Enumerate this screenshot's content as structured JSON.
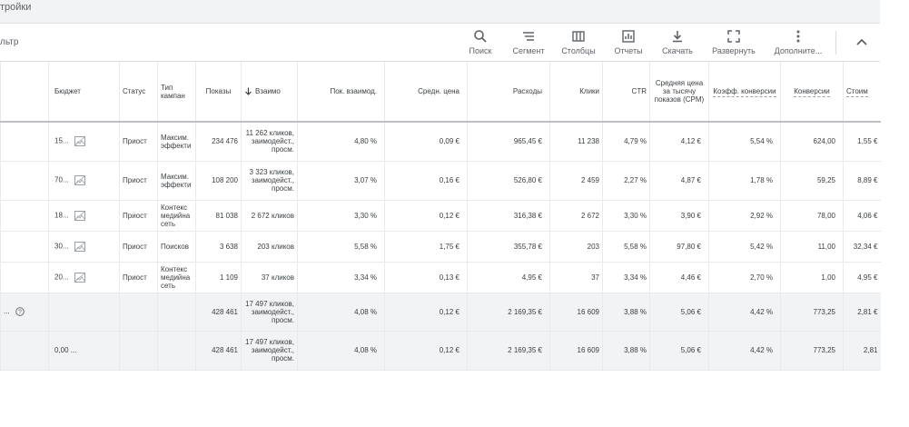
{
  "topbar": {
    "title": "тройки"
  },
  "toolbar": {
    "filter_label": "льтр",
    "tools": {
      "search": "Поиск",
      "segment": "Сегмент",
      "columns": "Столбцы",
      "reports": "Отчеты",
      "download": "Скачать",
      "expand": "Развернуть",
      "more": "Дополните..."
    }
  },
  "table": {
    "headers": {
      "budget": "Бюджет",
      "status": "Статус",
      "type": "Тип кампан",
      "impressions": "Показы",
      "interactions": "Взаимо",
      "interaction_rate": "Пок. взаимод.",
      "avg_cost": "Средн. цена",
      "cost": "Расходы",
      "clicks": "Клики",
      "ctr": "CTR",
      "cpm": "Средняя цена за тысячу показов (CPM)",
      "conv_rate": "Коэфф. конверсии",
      "conversions": "Конверсии",
      "cost_per": "Стоим"
    },
    "rows": [
      {
        "budget": "15...",
        "status": "Приост",
        "type": "Максим. эффекти",
        "impressions": "234 476",
        "interactions": "11 262 кликов, заимодейст., просм.",
        "interaction_rate": "4,80 %",
        "avg_cost": "0,09 €",
        "cost": "965,45 €",
        "clicks": "11 238",
        "ctr": "4,79 %",
        "cpm": "4,12 €",
        "conv_rate": "5,54 %",
        "conversions": "624,00",
        "cost_per": "1,55 €"
      },
      {
        "budget": "70...",
        "status": "Приост",
        "type": "Максим. эффекти",
        "impressions": "108 200",
        "interactions": "3 323 кликов, заимодейст., просм.",
        "interaction_rate": "3,07 %",
        "avg_cost": "0,16 €",
        "cost": "526,80 €",
        "clicks": "2 459",
        "ctr": "2,27 %",
        "cpm": "4,87 €",
        "conv_rate": "1,78 %",
        "conversions": "59,25",
        "cost_per": "8,89 €"
      },
      {
        "budget": "18...",
        "status": "Приост",
        "type": "Контекс медийна сеть",
        "impressions": "81 038",
        "interactions": "2 672 кликов",
        "interaction_rate": "3,30 %",
        "avg_cost": "0,12 €",
        "cost": "316,38 €",
        "clicks": "2 672",
        "ctr": "3,30 %",
        "cpm": "3,90 €",
        "conv_rate": "2,92 %",
        "conversions": "78,00",
        "cost_per": "4,06 €"
      },
      {
        "budget": "30...",
        "status": "Приост",
        "type": "Поисков",
        "impressions": "3 638",
        "interactions": "203 кликов",
        "interaction_rate": "5,58 %",
        "avg_cost": "1,75 €",
        "cost": "355,78 €",
        "clicks": "203",
        "ctr": "5,58 %",
        "cpm": "97,80 €",
        "conv_rate": "5,42 %",
        "conversions": "11,00",
        "cost_per": "32,34 €"
      },
      {
        "budget": "20...",
        "status": "Приост",
        "type": "Контекс медийна сеть",
        "impressions": "1 109",
        "interactions": "37 кликов",
        "interaction_rate": "3,34 %",
        "avg_cost": "0,13 €",
        "cost": "4,95 €",
        "clicks": "37",
        "ctr": "3,34 %",
        "cpm": "4,46 €",
        "conv_rate": "2,70 %",
        "conversions": "1,00",
        "cost_per": "4,95 €"
      }
    ],
    "totals": [
      {
        "label": "...",
        "budget": "",
        "impressions": "428 461",
        "interactions": "17 497 кликов, заимодейст., просм.",
        "interaction_rate": "4,08 %",
        "avg_cost": "0,12 €",
        "cost": "2 169,35 €",
        "clicks": "16 609",
        "ctr": "3,88 %",
        "cpm": "5,06 €",
        "conv_rate": "4,42 %",
        "conversions": "773,25",
        "cost_per": "2,81 €"
      },
      {
        "label": "",
        "budget": "0,00 ...",
        "impressions": "428 461",
        "interactions": "17 497 кликов, заимодейст., просм.",
        "interaction_rate": "4,08 %",
        "avg_cost": "0,12 €",
        "cost": "2 169,35 €",
        "clicks": "16 609",
        "ctr": "3,88 %",
        "cpm": "5,06 €",
        "conv_rate": "4,42 %",
        "conversions": "773,25",
        "cost_per": "2,81"
      }
    ]
  },
  "icons": {
    "search": "search-icon",
    "segment": "segment-icon",
    "columns": "columns-icon",
    "reports": "reports-icon",
    "download": "download-icon",
    "expand": "expand-icon",
    "more": "more-vert-icon",
    "collapse": "chevron-up-icon",
    "image": "image-icon",
    "help": "help-icon",
    "sort": "arrow-down-icon"
  },
  "colors": {
    "accent": "#1a73e8",
    "header_bg": "#f1f3f4",
    "total_bg": "#f1f3f4"
  }
}
